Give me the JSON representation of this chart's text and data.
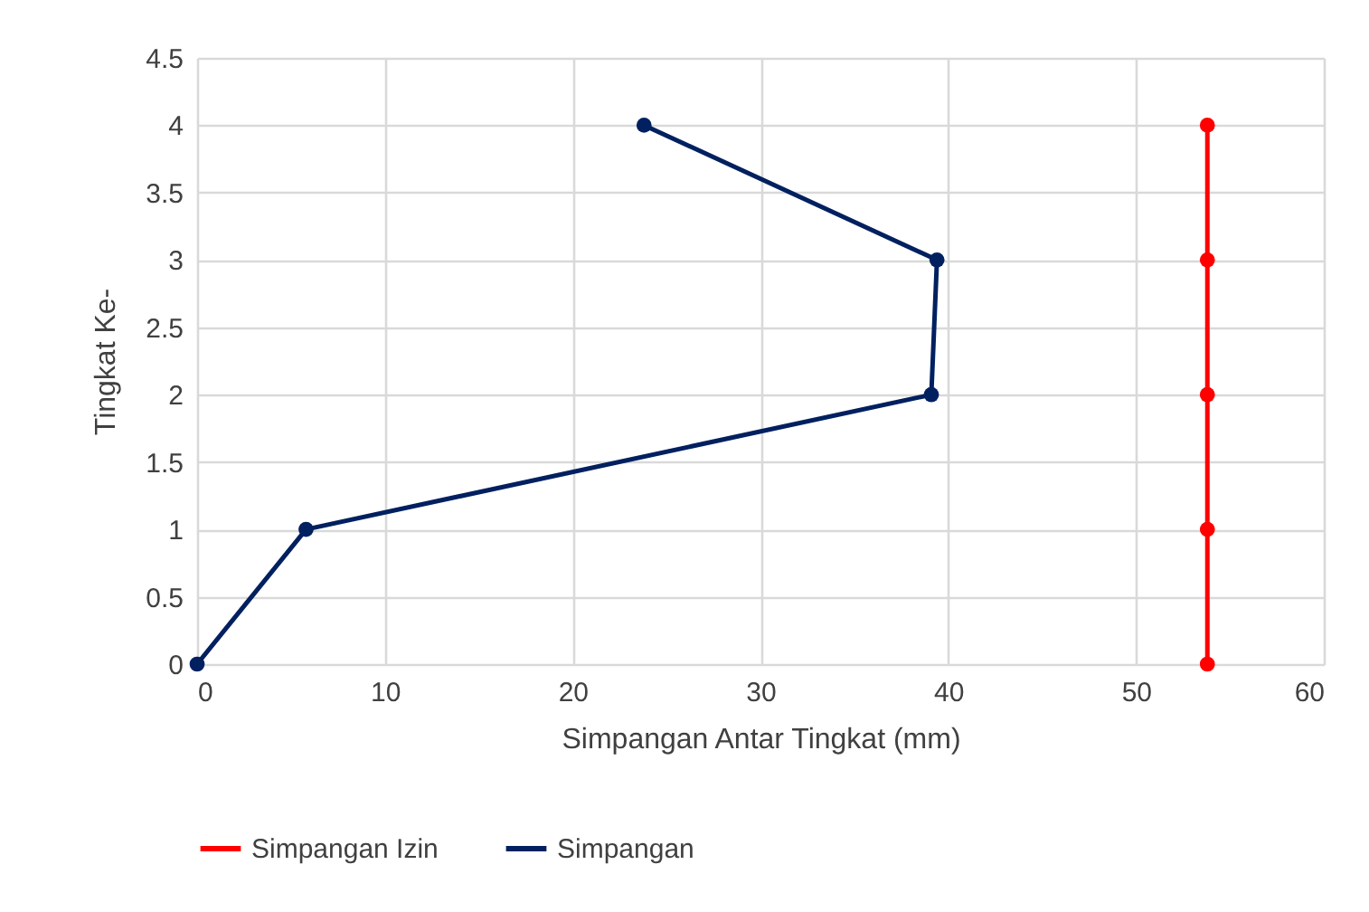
{
  "chart_data": {
    "type": "line",
    "xlabel": "Simpangan Antar Tingkat (mm)",
    "ylabel": "Tingkat Ke-",
    "series": [
      {
        "name": "Simpangan Izin",
        "color": "#ff0000",
        "x": [
          53.8,
          53.8,
          53.8,
          53.8,
          53.8
        ],
        "values": [
          0,
          1,
          2,
          3,
          4
        ]
      },
      {
        "name": "Simpangan",
        "color": "#002060",
        "x": [
          0,
          5.8,
          39.1,
          39.4,
          23.8
        ],
        "values": [
          0,
          1,
          2,
          3,
          4
        ]
      }
    ],
    "xlim": [
      0,
      60
    ],
    "xticks": [
      0,
      10,
      20,
      30,
      40,
      50,
      60
    ],
    "ylim": [
      0,
      4.5
    ],
    "yticks": [
      0,
      0.5,
      1,
      1.5,
      2,
      2.5,
      3,
      3.5,
      4,
      4.5
    ],
    "grid": true,
    "legend": "bottom",
    "marker": "circle",
    "line_style": "solid"
  }
}
